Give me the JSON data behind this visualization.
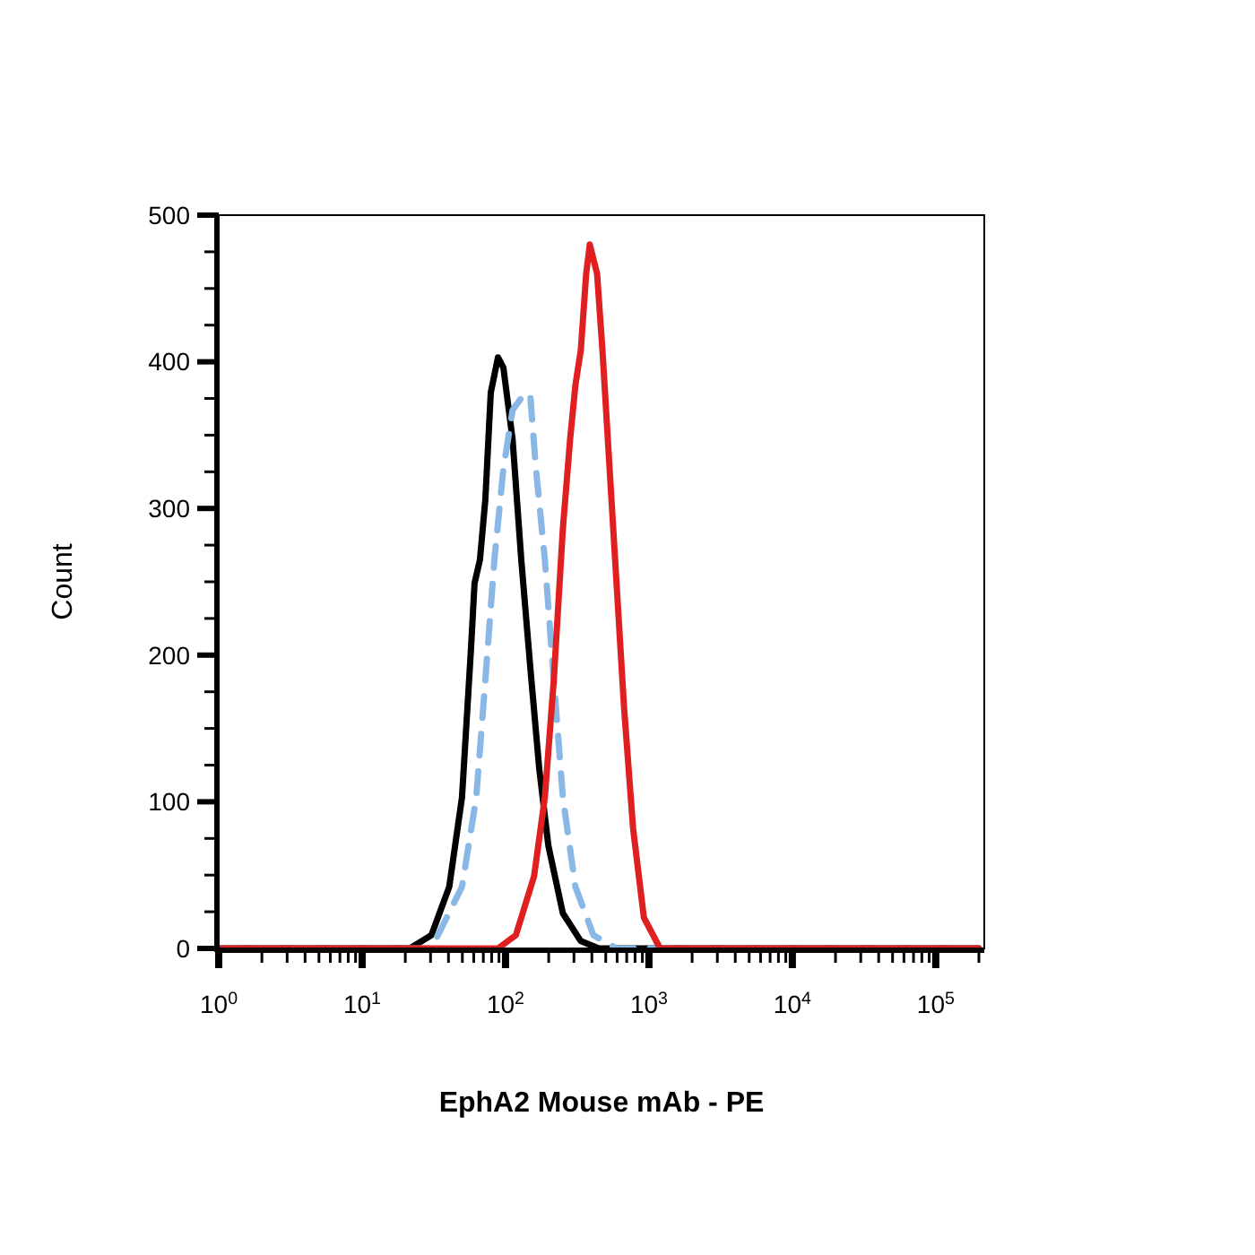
{
  "chart_data": {
    "type": "line",
    "xlabel": "EphA2 Mouse mAb - PE",
    "ylabel": "Count",
    "log": "x",
    "xlim": [
      1,
      218000
    ],
    "ylim": [
      0,
      500
    ],
    "xticks": [
      {
        "value": 1,
        "label": "10$^{0}$"
      },
      {
        "value": 2,
        "label": null
      },
      {
        "value": 3,
        "label": null
      },
      {
        "value": 4,
        "label": null
      },
      {
        "value": 5,
        "label": null
      },
      {
        "value": 6,
        "label": null
      },
      {
        "value": 7,
        "label": null
      },
      {
        "value": 8,
        "label": null
      },
      {
        "value": 9,
        "label": null
      },
      {
        "value": 10,
        "label": "10$^{1}$"
      },
      {
        "value": 20,
        "label": null
      },
      {
        "value": 30,
        "label": null
      },
      {
        "value": 40,
        "label": null
      },
      {
        "value": 50,
        "label": null
      },
      {
        "value": 60,
        "label": null
      },
      {
        "value": 70,
        "label": null
      },
      {
        "value": 80,
        "label": null
      },
      {
        "value": 90,
        "label": null
      },
      {
        "value": 100,
        "label": "10$^{2}$"
      },
      {
        "value": 200,
        "label": null
      },
      {
        "value": 300,
        "label": null
      },
      {
        "value": 400,
        "label": null
      },
      {
        "value": 500,
        "label": null
      },
      {
        "value": 600,
        "label": null
      },
      {
        "value": 700,
        "label": null
      },
      {
        "value": 800,
        "label": null
      },
      {
        "value": 900,
        "label": null
      },
      {
        "value": 1000,
        "label": "10$^{3}$"
      },
      {
        "value": 2000,
        "label": null
      },
      {
        "value": 3000,
        "label": null
      },
      {
        "value": 4000,
        "label": null
      },
      {
        "value": 5000,
        "label": null
      },
      {
        "value": 6000,
        "label": null
      },
      {
        "value": 7000,
        "label": null
      },
      {
        "value": 8000,
        "label": null
      },
      {
        "value": 9000,
        "label": null
      },
      {
        "value": 10000,
        "label": "10$^{4}$"
      },
      {
        "value": 20000,
        "label": null
      },
      {
        "value": 30000,
        "label": null
      },
      {
        "value": 40000,
        "label": null
      },
      {
        "value": 50000,
        "label": null
      },
      {
        "value": 60000,
        "label": null
      },
      {
        "value": 70000,
        "label": null
      },
      {
        "value": 80000,
        "label": null
      },
      {
        "value": 90000,
        "label": null
      },
      {
        "value": 100000,
        "label": "10$^{5}$"
      },
      {
        "value": 200000,
        "label": null
      }
    ],
    "yticks": [
      0,
      {
        "value": 25,
        "label": null
      },
      {
        "value": 50,
        "label": null
      },
      {
        "value": 75,
        "label": null
      },
      100,
      {
        "value": 125,
        "label": null
      },
      {
        "value": 150,
        "label": null
      },
      {
        "value": 175,
        "label": null
      },
      200,
      {
        "value": 225,
        "label": null
      },
      {
        "value": 250,
        "label": null
      },
      {
        "value": 275,
        "label": null
      },
      300,
      {
        "value": 325,
        "label": null
      },
      {
        "value": 350,
        "label": null
      },
      {
        "value": 375,
        "label": null
      },
      400,
      {
        "value": 425,
        "label": null
      },
      {
        "value": 450,
        "label": null
      },
      {
        "value": 475,
        "label": null
      },
      500
    ],
    "grid": false,
    "marker": "none",
    "series": [
      {
        "color": "#000000",
        "line_style": "solid",
        "x": [
          1,
          21.5,
          30.4,
          40.5,
          49.7,
          57.4,
          60.8,
          66.3,
          72.3,
          78.9,
          88.6,
          96.6,
          112,
          129,
          149,
          172,
          199,
          251,
          335,
          448,
          200000
        ],
        "values": [
          0,
          0,
          9,
          42,
          103,
          204,
          249,
          265,
          306,
          379,
          403,
          396,
          347,
          264,
          191,
          122,
          70,
          24,
          5,
          0,
          0
        ]
      },
      {
        "color": "#8ab8e6",
        "line_style": "dashed",
        "x": [
          1,
          30.4,
          49.7,
          62.5,
          72.3,
          83.6,
          96.6,
          112,
          137,
          149,
          163,
          188,
          217,
          251,
          307,
          410,
          597,
          200000
        ],
        "values": [
          0,
          0,
          42,
          103,
          183,
          265,
          327,
          367,
          379,
          376,
          327,
          265,
          183,
          103,
          42,
          9,
          0,
          0
        ]
      },
      {
        "color": "#e02020",
        "line_style": "solid",
        "x": [
          1,
          88.6,
          118,
          158,
          188,
          217,
          251,
          282,
          307,
          335,
          365,
          387,
          435,
          474,
          517,
          581,
          671,
          775,
          922,
          1197,
          200000
        ],
        "values": [
          0,
          0,
          9,
          49,
          103,
          183,
          286,
          347,
          384,
          408,
          460,
          480,
          460,
          408,
          347,
          265,
          164,
          82,
          21,
          0,
          0
        ]
      }
    ]
  }
}
